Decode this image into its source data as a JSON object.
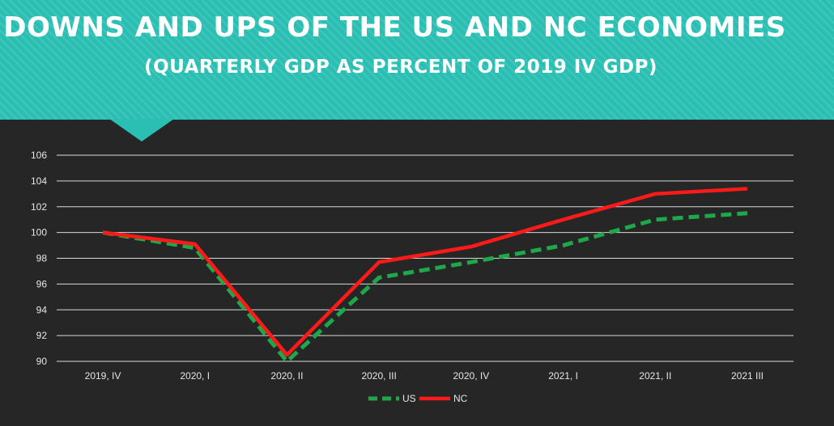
{
  "header": {
    "title": "DOWNS AND UPS OF THE US AND NC ECONOMIES",
    "subtitle": "(QUARTERLY GDP AS PERCENT OF 2019 IV GDP)"
  },
  "chart_data": {
    "type": "line",
    "categories": [
      "2019, IV",
      "2020, I",
      "2020, II",
      "2020, III",
      "2020, IV",
      "2021, I",
      "2021, II",
      "2021 III"
    ],
    "series": [
      {
        "name": "US",
        "values": [
          100,
          98.8,
          90.0,
          96.5,
          97.7,
          99.0,
          101.0,
          101.5
        ],
        "color": "#1fa84a",
        "style": "dashed"
      },
      {
        "name": "NC",
        "values": [
          100,
          99.1,
          90.5,
          97.7,
          98.9,
          101.0,
          103.0,
          103.4
        ],
        "color": "#ff1a1a",
        "style": "solid"
      }
    ],
    "yticks": [
      90,
      92,
      94,
      96,
      98,
      100,
      102,
      104,
      106
    ],
    "ylim": [
      90,
      106
    ],
    "grid": true,
    "legend": "bottom",
    "title": "DOWNS AND UPS OF THE US AND NC ECONOMIES",
    "subtitle": "(QUARTERLY GDP AS PERCENT OF 2019 IV GDP)"
  },
  "colors": {
    "banner": "#2bbfb4",
    "background": "#262626",
    "gridline": "#d9d9d9"
  }
}
